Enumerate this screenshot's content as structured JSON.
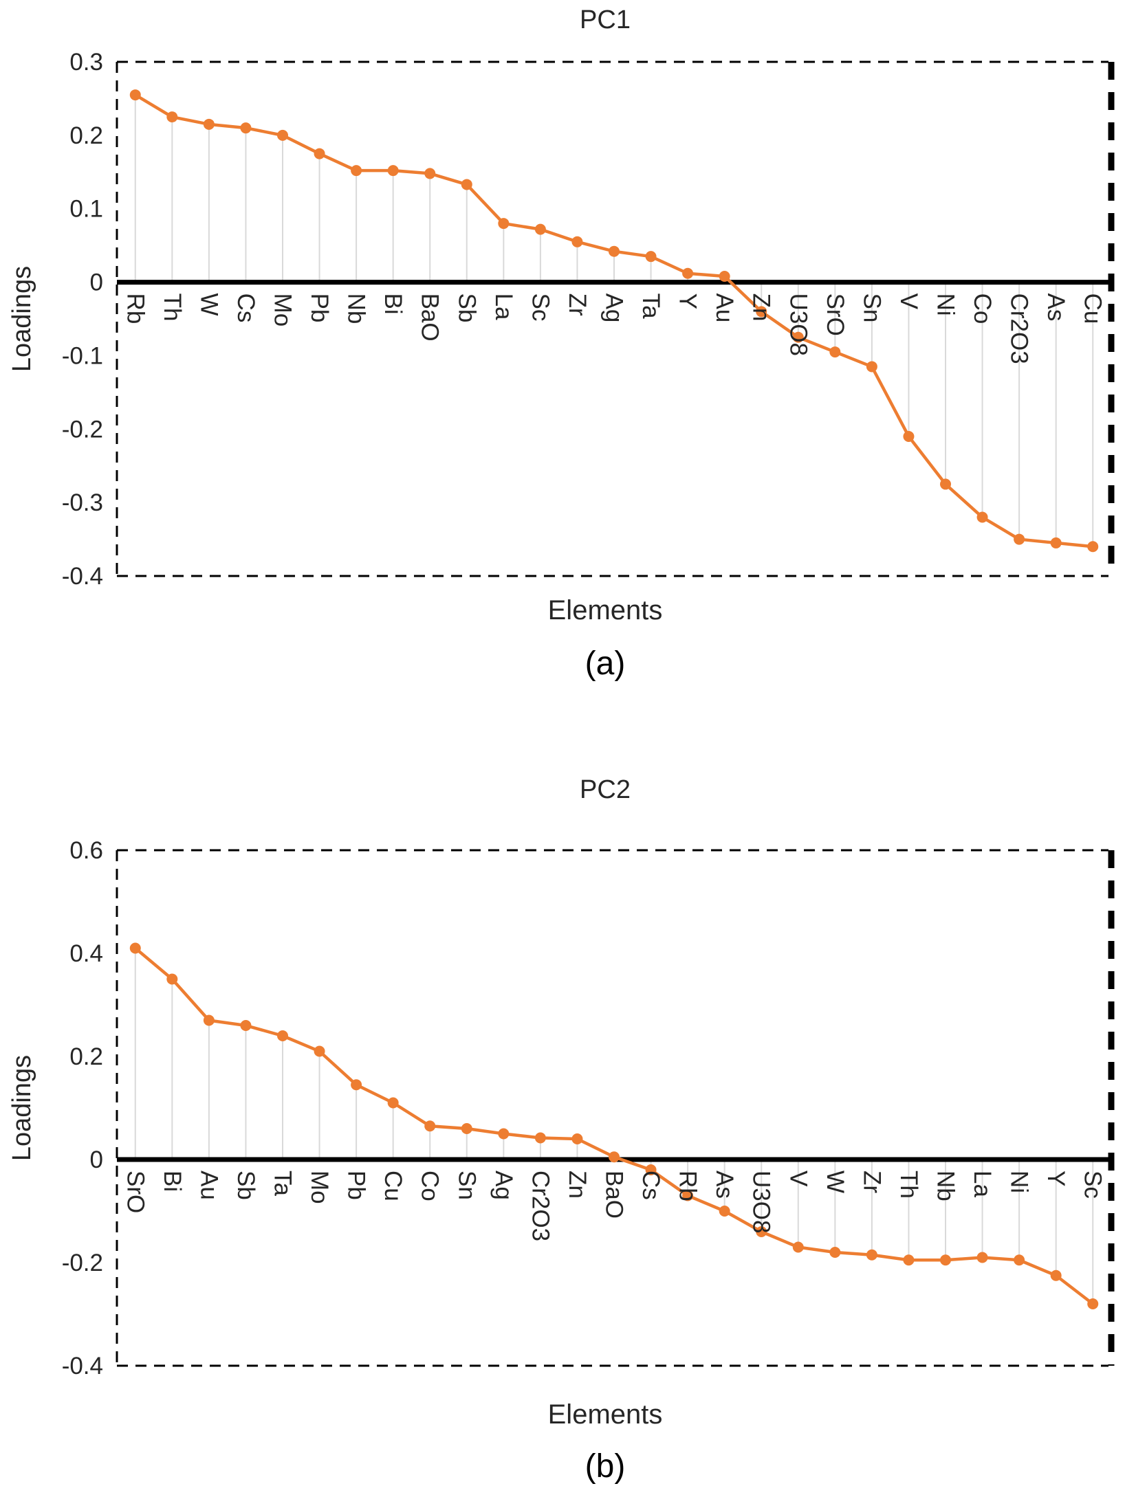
{
  "styles": {
    "line_color": "#ED7D31",
    "drop_line_color": "#D9D9D9",
    "axis_color": "#000000",
    "text_color": "#262626"
  },
  "chart_data": [
    {
      "type": "line",
      "title": "PC1",
      "xlabel": "Elements",
      "ylabel": "Loadings",
      "caption": "(a)",
      "ylim": [
        -0.4,
        0.3
      ],
      "yticks": [
        0.3,
        0.2,
        0.1,
        0,
        -0.1,
        -0.2,
        -0.3,
        -0.4
      ],
      "ytick_labels": [
        "0.3",
        "0.2",
        "0.1",
        "0",
        "-0.1",
        "-0.2",
        "-0.3",
        "-0.4"
      ],
      "line_color": "#ED7D31",
      "legend": "none",
      "grid": "off",
      "categories": [
        "Rb",
        "Th",
        "W",
        "Cs",
        "Mo",
        "Pb",
        "Nb",
        "Bi",
        "BaO",
        "Sb",
        "La",
        "Sc",
        "Zr",
        "Ag",
        "Ta",
        "Y",
        "Au",
        "Zn",
        "U3O8",
        "SrO",
        "Sn",
        "V",
        "Ni",
        "Co",
        "Cr2O3",
        "As",
        "Cu"
      ],
      "values": [
        0.255,
        0.225,
        0.215,
        0.21,
        0.2,
        0.175,
        0.152,
        0.152,
        0.148,
        0.133,
        0.08,
        0.072,
        0.055,
        0.042,
        0.035,
        0.012,
        0.008,
        -0.04,
        -0.075,
        -0.095,
        -0.115,
        -0.21,
        -0.275,
        -0.32,
        -0.35,
        -0.355,
        -0.36
      ]
    },
    {
      "type": "line",
      "title": "PC2",
      "xlabel": "Elements",
      "ylabel": "Loadings",
      "caption": "(b)",
      "ylim": [
        -0.4,
        0.6
      ],
      "yticks": [
        0.6,
        0.4,
        0.2,
        0,
        -0.2,
        -0.4
      ],
      "ytick_labels": [
        "0.6",
        "0.4",
        "0.2",
        "0",
        "-0.2",
        "-0.4"
      ],
      "line_color": "#ED7D31",
      "legend": "none",
      "grid": "off",
      "categories": [
        "SrO",
        "Bi",
        "Au",
        "Sb",
        "Ta",
        "Mo",
        "Pb",
        "Cu",
        "Co",
        "Sn",
        "Ag",
        "Cr2O3",
        "Zn",
        "BaO",
        "Cs",
        "Rb",
        "As",
        "U3O8",
        "V",
        "W",
        "Zr",
        "Th",
        "Nb",
        "La",
        "Ni",
        "Y",
        "Sc"
      ],
      "values": [
        0.41,
        0.35,
        0.27,
        0.26,
        0.24,
        0.21,
        0.145,
        0.11,
        0.065,
        0.06,
        0.05,
        0.042,
        0.04,
        0.005,
        -0.02,
        -0.07,
        -0.1,
        -0.14,
        -0.17,
        -0.18,
        -0.185,
        -0.195,
        -0.195,
        -0.19,
        -0.195,
        -0.225,
        -0.28
      ]
    }
  ]
}
